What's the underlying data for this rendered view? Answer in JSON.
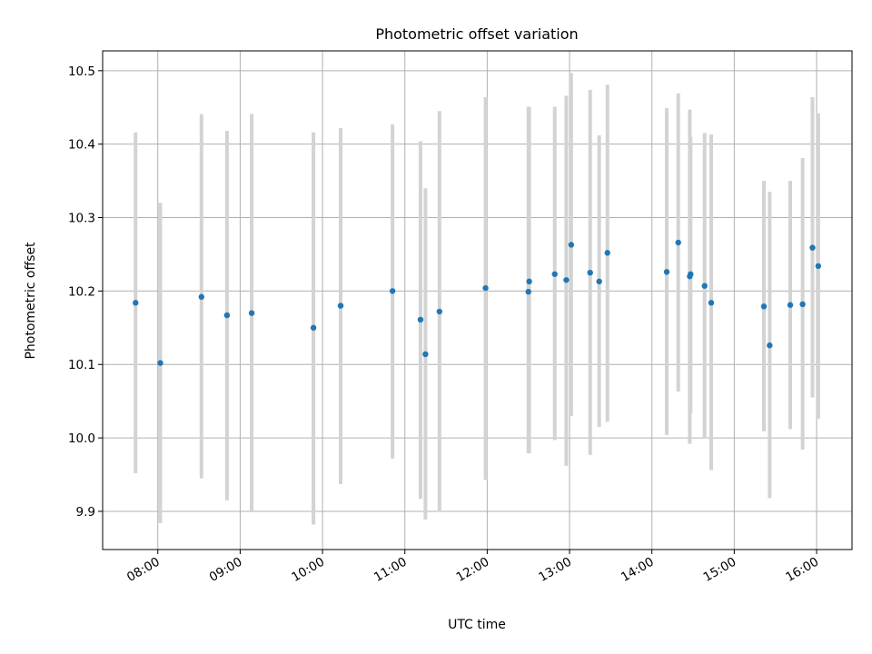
{
  "chart_data": {
    "type": "scatter",
    "title": "Photometric offset variation",
    "xlabel": "UTC time",
    "ylabel": "Photometric offset",
    "grid": true,
    "x_unit": "hours",
    "xlim": [
      7.33,
      16.43
    ],
    "ylim": [
      9.848,
      10.527
    ],
    "x_ticks": [
      {
        "value": 8,
        "label": "08:00"
      },
      {
        "value": 9,
        "label": "09:00"
      },
      {
        "value": 10,
        "label": "10:00"
      },
      {
        "value": 11,
        "label": "11:00"
      },
      {
        "value": 12,
        "label": "12:00"
      },
      {
        "value": 13,
        "label": "13:00"
      },
      {
        "value": 14,
        "label": "14:00"
      },
      {
        "value": 15,
        "label": "15:00"
      },
      {
        "value": 16,
        "label": "16:00"
      }
    ],
    "y_ticks": [
      {
        "value": 9.9,
        "label": "9.9"
      },
      {
        "value": 10.0,
        "label": "10.0"
      },
      {
        "value": 10.1,
        "label": "10.1"
      },
      {
        "value": 10.2,
        "label": "10.2"
      },
      {
        "value": 10.3,
        "label": "10.3"
      },
      {
        "value": 10.4,
        "label": "10.4"
      },
      {
        "value": 10.5,
        "label": "10.5"
      }
    ],
    "marker_color": "#1f77b4",
    "errorbar_color": "#d3d3d3",
    "points": [
      {
        "x": 7.73,
        "y": 10.184,
        "ylo": 9.952,
        "yhi": 10.416
      },
      {
        "x": 8.03,
        "y": 10.102,
        "ylo": 9.884,
        "yhi": 10.32
      },
      {
        "x": 8.53,
        "y": 10.192,
        "ylo": 9.945,
        "yhi": 10.441
      },
      {
        "x": 8.84,
        "y": 10.167,
        "ylo": 9.915,
        "yhi": 10.418
      },
      {
        "x": 9.14,
        "y": 10.17,
        "ylo": 9.9,
        "yhi": 10.441
      },
      {
        "x": 9.89,
        "y": 10.15,
        "ylo": 9.882,
        "yhi": 10.416
      },
      {
        "x": 10.22,
        "y": 10.18,
        "ylo": 9.937,
        "yhi": 10.422
      },
      {
        "x": 10.85,
        "y": 10.2,
        "ylo": 9.972,
        "yhi": 10.427
      },
      {
        "x": 11.19,
        "y": 10.161,
        "ylo": 9.917,
        "yhi": 10.404
      },
      {
        "x": 11.25,
        "y": 10.114,
        "ylo": 9.889,
        "yhi": 10.34
      },
      {
        "x": 11.42,
        "y": 10.172,
        "ylo": 9.899,
        "yhi": 10.445
      },
      {
        "x": 11.98,
        "y": 10.204,
        "ylo": 9.943,
        "yhi": 10.464
      },
      {
        "x": 12.5,
        "y": 10.199,
        "ylo": 9.979,
        "yhi": 10.451
      },
      {
        "x": 12.51,
        "y": 10.213,
        "ylo": 9.979,
        "yhi": 10.451
      },
      {
        "x": 12.82,
        "y": 10.223,
        "ylo": 9.997,
        "yhi": 10.451
      },
      {
        "x": 12.96,
        "y": 10.215,
        "ylo": 9.962,
        "yhi": 10.466
      },
      {
        "x": 13.02,
        "y": 10.263,
        "ylo": 10.03,
        "yhi": 10.497
      },
      {
        "x": 13.25,
        "y": 10.225,
        "ylo": 9.977,
        "yhi": 10.474
      },
      {
        "x": 13.36,
        "y": 10.213,
        "ylo": 10.015,
        "yhi": 10.412
      },
      {
        "x": 13.46,
        "y": 10.252,
        "ylo": 10.022,
        "yhi": 10.481
      },
      {
        "x": 14.18,
        "y": 10.226,
        "ylo": 10.004,
        "yhi": 10.449
      },
      {
        "x": 14.32,
        "y": 10.266,
        "ylo": 10.063,
        "yhi": 10.469
      },
      {
        "x": 14.46,
        "y": 10.22,
        "ylo": 9.992,
        "yhi": 10.447
      },
      {
        "x": 14.47,
        "y": 10.223,
        "ylo": 10.034,
        "yhi": 10.41
      },
      {
        "x": 14.64,
        "y": 10.207,
        "ylo": 9.999,
        "yhi": 10.415
      },
      {
        "x": 14.72,
        "y": 10.184,
        "ylo": 9.956,
        "yhi": 10.413
      },
      {
        "x": 15.36,
        "y": 10.179,
        "ylo": 10.009,
        "yhi": 10.35
      },
      {
        "x": 15.43,
        "y": 10.126,
        "ylo": 9.918,
        "yhi": 10.335
      },
      {
        "x": 15.68,
        "y": 10.181,
        "ylo": 10.012,
        "yhi": 10.35
      },
      {
        "x": 15.83,
        "y": 10.182,
        "ylo": 9.984,
        "yhi": 10.381
      },
      {
        "x": 15.95,
        "y": 10.259,
        "ylo": 10.055,
        "yhi": 10.464
      },
      {
        "x": 16.02,
        "y": 10.234,
        "ylo": 10.026,
        "yhi": 10.442
      }
    ]
  }
}
